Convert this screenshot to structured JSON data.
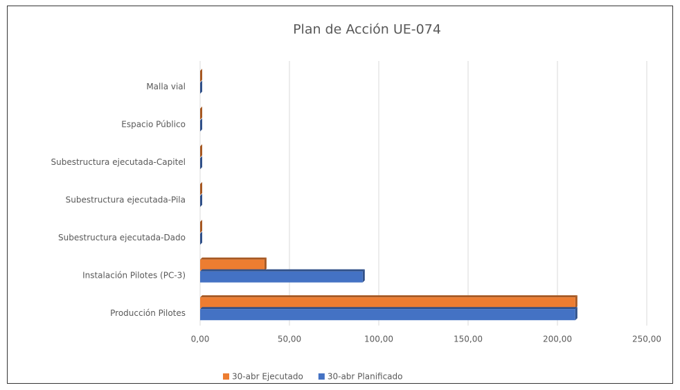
{
  "chart_data": {
    "type": "bar",
    "orientation": "horizontal",
    "title": "Plan de Acción UE-074",
    "categories": [
      "Malla vial",
      "Espacio Público",
      "Subestructura ejecutada-Capitel",
      "Subestructura ejecutada-Pila",
      "Subestructura ejecutada-Dado",
      "Instalación Pilotes (PC-3)",
      "Producción Pilotes"
    ],
    "series": [
      {
        "name": "30-abr Ejecutado",
        "color": "#ed7d31",
        "values": [
          0,
          0,
          0,
          0,
          0,
          36,
          210
        ]
      },
      {
        "name": "30-abr Planificado",
        "color": "#4472c4",
        "values": [
          0,
          0,
          0,
          0,
          0,
          91,
          210
        ]
      }
    ],
    "xlim": [
      0,
      250
    ],
    "xticks": [
      {
        "value": 0,
        "label": "0,00"
      },
      {
        "value": 50,
        "label": "50,00"
      },
      {
        "value": 100,
        "label": "100,00"
      },
      {
        "value": 150,
        "label": "150,00"
      },
      {
        "value": 200,
        "label": "200,00"
      },
      {
        "value": 250,
        "label": "250,00"
      }
    ],
    "grid": true,
    "legend": "bottom"
  }
}
